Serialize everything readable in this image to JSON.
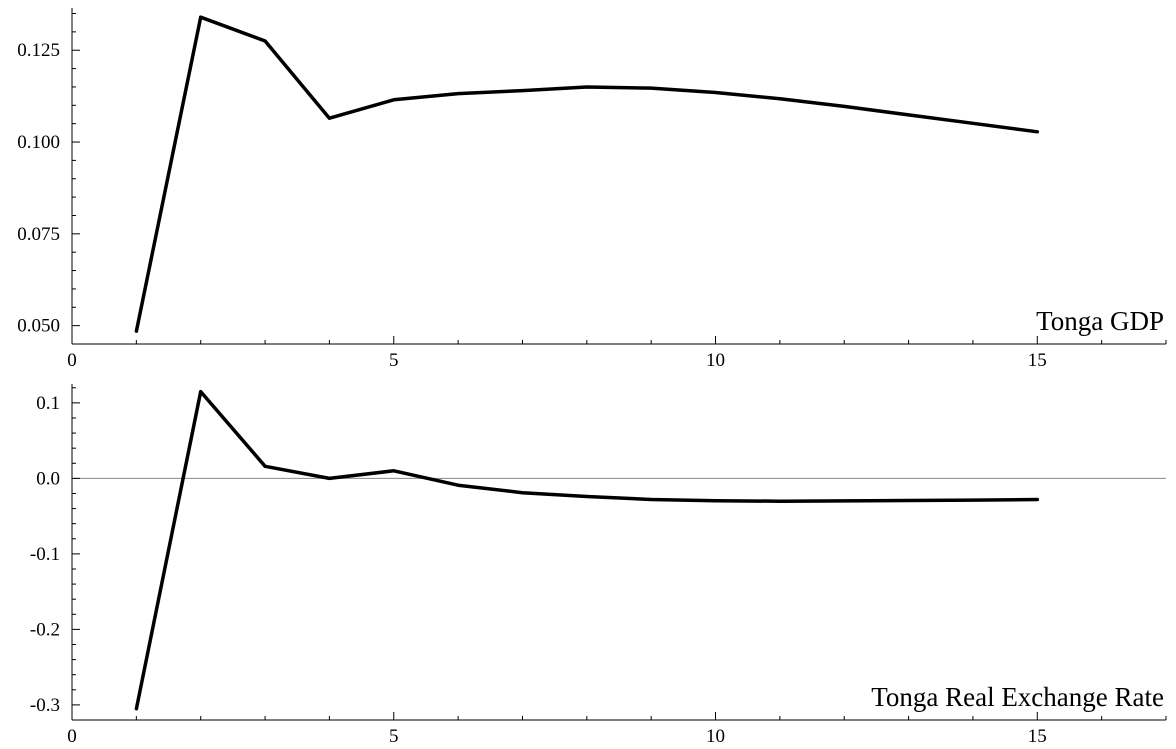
{
  "chart_data": [
    {
      "type": "line",
      "label": "Tonga GDP",
      "x": [
        1,
        2,
        3,
        4,
        5,
        6,
        7,
        8,
        9,
        10,
        11,
        12,
        13,
        14,
        15
      ],
      "y": [
        0.0485,
        0.134,
        0.1275,
        0.1065,
        0.1115,
        0.1132,
        0.114,
        0.115,
        0.1147,
        0.1135,
        0.1118,
        0.1097,
        0.1074,
        0.1051,
        0.1028
      ],
      "xlim": [
        0,
        17
      ],
      "ylim": [
        0.045,
        0.1365
      ],
      "xticks": [
        0,
        5,
        10,
        15
      ],
      "yticks": [
        0.05,
        0.075,
        0.1,
        0.125
      ],
      "xtick_labels": [
        "0",
        "5",
        "10",
        "15"
      ],
      "ytick_labels": [
        "0.050",
        "0.075",
        "0.100",
        "0.125"
      ],
      "zero_line": false,
      "line_color": "#000000"
    },
    {
      "type": "line",
      "label": "Tonga Real Exchange Rate",
      "x": [
        1,
        2,
        3,
        4,
        5,
        6,
        7,
        8,
        9,
        10,
        11,
        12,
        13,
        14,
        15
      ],
      "y": [
        -0.305,
        0.115,
        0.016,
        0.0,
        0.01,
        -0.009,
        -0.019,
        -0.024,
        -0.028,
        -0.0295,
        -0.0302,
        -0.0298,
        -0.0293,
        -0.0288,
        -0.028
      ],
      "xlim": [
        0,
        17
      ],
      "ylim": [
        -0.32,
        0.125
      ],
      "xticks": [
        0,
        5,
        10,
        15
      ],
      "yticks": [
        -0.3,
        -0.2,
        -0.1,
        0.0,
        0.1
      ],
      "xtick_labels": [
        "0",
        "5",
        "10",
        "15"
      ],
      "ytick_labels": [
        "-0.3",
        "-0.2",
        "-0.1",
        "0.0",
        "0.1"
      ],
      "zero_line": true,
      "line_color": "#000000",
      "zero_line_color": "#888888"
    }
  ]
}
